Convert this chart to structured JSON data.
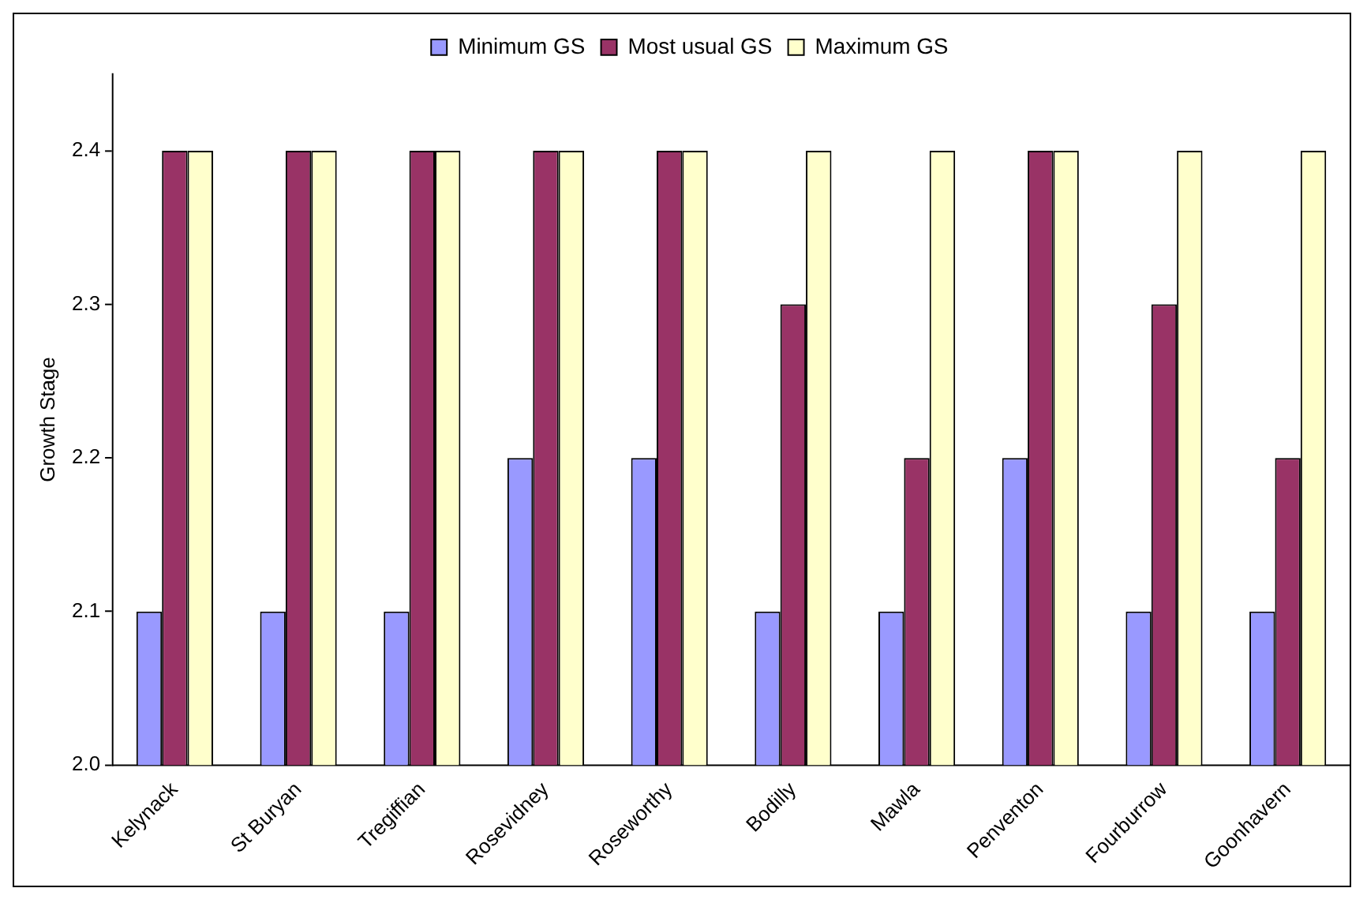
{
  "chart_data": {
    "type": "bar",
    "ylabel": "Growth Stage",
    "categories": [
      "Kelynack",
      "St Buryan",
      "Tregiffian",
      "Rosevidney",
      "Roseworthy",
      "Bodilly",
      "Mawla",
      "Penventon",
      "Fourburrow",
      "Goonhavern"
    ],
    "series": [
      {
        "name": "Minimum GS",
        "color": "#9999ff",
        "values": [
          2.1,
          2.1,
          2.1,
          2.2,
          2.2,
          2.1,
          2.1,
          2.2,
          2.1,
          2.1
        ]
      },
      {
        "name": "Most usual GS",
        "color": "#993366",
        "values": [
          2.4,
          2.4,
          2.4,
          2.4,
          2.4,
          2.3,
          2.2,
          2.4,
          2.3,
          2.2
        ]
      },
      {
        "name": "Maximum GS",
        "color": "#ffffcc",
        "values": [
          2.4,
          2.4,
          2.4,
          2.4,
          2.4,
          2.4,
          2.4,
          2.4,
          2.4,
          2.4
        ]
      }
    ],
    "ylim": [
      2.0,
      2.45
    ],
    "yticks": [
      {
        "value": 2.0,
        "label": "2.0"
      },
      {
        "value": 2.1,
        "label": "2.1"
      },
      {
        "value": 2.2,
        "label": "2.2"
      },
      {
        "value": 2.3,
        "label": "2.3"
      },
      {
        "value": 2.4,
        "label": "2.4"
      }
    ],
    "grid": false,
    "legend": "top"
  }
}
